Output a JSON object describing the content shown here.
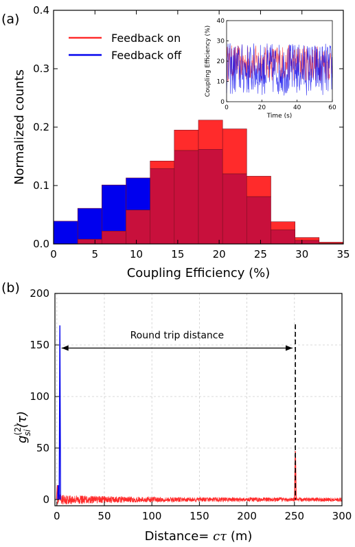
{
  "panel_a_label": "(a)",
  "panel_b_label": "(b)",
  "colors": {
    "feedback_on": "#ff2b2b",
    "feedback_off": "#0000ee",
    "overlap": "#c8103c"
  },
  "chart_data": [
    {
      "type": "bar",
      "xlabel": "Coupling Efficiency (%)",
      "ylabel": "Normalized counts",
      "xlim": [
        0,
        35
      ],
      "ylim": [
        0,
        0.4
      ],
      "xticks": [
        "0",
        "5",
        "10",
        "15",
        "20",
        "25",
        "30",
        "35"
      ],
      "yticks": [
        "0.0",
        "0.1",
        "0.2",
        "0.3",
        "0.4"
      ],
      "bin_edges": [
        0,
        2.92,
        5.83,
        8.75,
        11.67,
        14.58,
        17.5,
        20.42,
        23.33,
        26.25,
        29.17,
        32.08,
        35
      ],
      "legend_position": "upper-left",
      "series": [
        {
          "name": "Feedback on",
          "color": "#ff2b2b",
          "values": [
            0.0,
            0.008,
            0.022,
            0.058,
            0.142,
            0.195,
            0.212,
            0.197,
            0.116,
            0.038,
            0.011,
            0.003
          ]
        },
        {
          "name": "Feedback off",
          "color": "#0000ee",
          "values": [
            0.039,
            0.061,
            0.101,
            0.113,
            0.129,
            0.16,
            0.162,
            0.12,
            0.081,
            0.024,
            0.006,
            0.001
          ]
        }
      ],
      "inset": {
        "type": "line",
        "xlabel": "Time (s)",
        "ylabel": "Coupling Efficiency (%)",
        "xlim": [
          0,
          60
        ],
        "ylim": [
          0,
          40
        ],
        "xticks": [
          "0",
          "20",
          "40",
          "60"
        ],
        "yticks": [
          "0",
          "10",
          "20",
          "30",
          "40"
        ],
        "series_colors": [
          "#ff2b2b",
          "#0000ee"
        ]
      }
    },
    {
      "type": "line",
      "xlabel_text": "Distance= ",
      "xlabel_math": "cτ",
      "xlabel_unit": " (m)",
      "ylabel_base": "g",
      "ylabel_sup": "(2)",
      "ylabel_sub": "si",
      "ylabel_arg": "(τ)",
      "xlim": [
        -2,
        300
      ],
      "ylim": [
        -6,
        200
      ],
      "xticks": [
        "0",
        "50",
        "100",
        "150",
        "200",
        "250",
        "300"
      ],
      "yticks": [
        "0",
        "50",
        "100",
        "150",
        "200"
      ],
      "grid": true,
      "annotation": "Round trip distance",
      "arrow_from": 5,
      "arrow_to": 248,
      "arrow_y": 147,
      "dashed_x": 251,
      "dashed_y_top": 170,
      "series": [
        {
          "color": "#0000ee",
          "peaks": [
            [
              1.5,
              14
            ],
            [
              3.2,
              169
            ]
          ]
        },
        {
          "color": "#ff2b2b",
          "peaks": [
            [
              0.5,
              14
            ],
            [
              251,
              47
            ]
          ],
          "noise_level": 2
        }
      ]
    }
  ]
}
